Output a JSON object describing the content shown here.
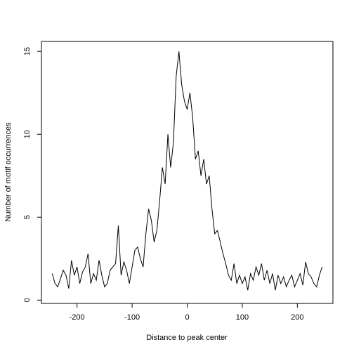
{
  "chart_data": {
    "type": "line",
    "x_label": "Distance to peak center",
    "y_label": "Number of motif occurrences",
    "x": [
      -245,
      -240,
      -235,
      -230,
      -225,
      -220,
      -215,
      -210,
      -205,
      -200,
      -195,
      -190,
      -185,
      -180,
      -175,
      -170,
      -165,
      -160,
      -155,
      -150,
      -145,
      -140,
      -135,
      -130,
      -125,
      -120,
      -115,
      -110,
      -105,
      -100,
      -95,
      -90,
      -85,
      -80,
      -75,
      -70,
      -65,
      -60,
      -55,
      -50,
      -45,
      -40,
      -35,
      -30,
      -25,
      -20,
      -15,
      -10,
      -5,
      0,
      5,
      10,
      15,
      20,
      25,
      30,
      35,
      40,
      45,
      50,
      55,
      60,
      65,
      70,
      75,
      80,
      85,
      90,
      95,
      100,
      105,
      110,
      115,
      120,
      125,
      130,
      135,
      140,
      145,
      150,
      155,
      160,
      165,
      170,
      175,
      180,
      185,
      190,
      195,
      200,
      205,
      210,
      215,
      220,
      225,
      230,
      235,
      240,
      245
    ],
    "values": [
      1.6,
      1.0,
      0.8,
      1.3,
      1.8,
      1.5,
      0.7,
      2.4,
      1.5,
      2.0,
      1.0,
      1.7,
      2.0,
      2.8,
      1.0,
      1.6,
      1.2,
      2.4,
      1.5,
      0.8,
      1.0,
      1.8,
      2.0,
      2.2,
      4.5,
      1.5,
      2.3,
      1.8,
      1.0,
      2.0,
      3.0,
      3.2,
      2.5,
      2.0,
      4.0,
      5.5,
      4.8,
      3.5,
      4.2,
      6.0,
      8.0,
      7.0,
      10.0,
      8.0,
      9.5,
      13.5,
      15.0,
      13.0,
      12.0,
      11.5,
      12.5,
      11.0,
      8.5,
      9.0,
      7.5,
      8.5,
      7.0,
      7.5,
      5.5,
      4.0,
      4.2,
      3.5,
      2.8,
      2.2,
      1.5,
      1.2,
      2.2,
      1.0,
      1.5,
      1.0,
      1.4,
      0.6,
      1.6,
      1.2,
      2.0,
      1.5,
      2.2,
      1.2,
      1.8,
      1.0,
      1.6,
      0.6,
      1.5,
      1.0,
      1.4,
      0.8,
      1.2,
      1.5,
      0.8,
      1.2,
      1.6,
      0.9,
      2.3,
      1.6,
      1.4,
      1.0,
      0.8,
      1.5,
      2.0
    ],
    "color": "#000000",
    "xlim": [
      -264.6,
      264.6
    ],
    "ylim": [
      -0.2,
      15.6
    ],
    "xticks": [
      -200,
      -100,
      0,
      100,
      200
    ],
    "yticks": [
      0,
      5,
      10,
      15
    ]
  }
}
